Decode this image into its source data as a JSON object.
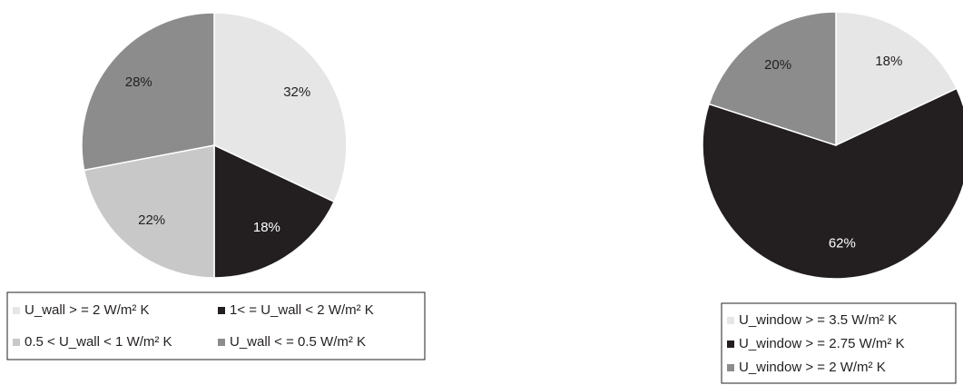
{
  "chart_data": [
    {
      "type": "pie",
      "categories": [
        "U_wall > = 2 W/m² K",
        "1< =  U_wall < 2 W/m² K",
        "0.5 < U_wall < 1 W/m² K",
        "U_wall < = 0.5 W/m² K"
      ],
      "values": [
        32,
        18,
        22,
        28
      ],
      "value_labels": [
        "32%",
        "18%",
        "22%",
        "28%"
      ],
      "colors": [
        "#e6e6e6",
        "#231f20",
        "#c8c8c8",
        "#8c8c8c"
      ]
    },
    {
      "type": "pie",
      "categories": [
        "U_window > = 3.5 W/m² K",
        "U_window > = 2.75 W/m² K",
        "U_window > = 2 W/m² K"
      ],
      "values": [
        18,
        62,
        20
      ],
      "value_labels": [
        "18%",
        "62%",
        "20%"
      ],
      "colors": [
        "#e6e6e6",
        "#231f20",
        "#8c8c8c"
      ]
    }
  ]
}
